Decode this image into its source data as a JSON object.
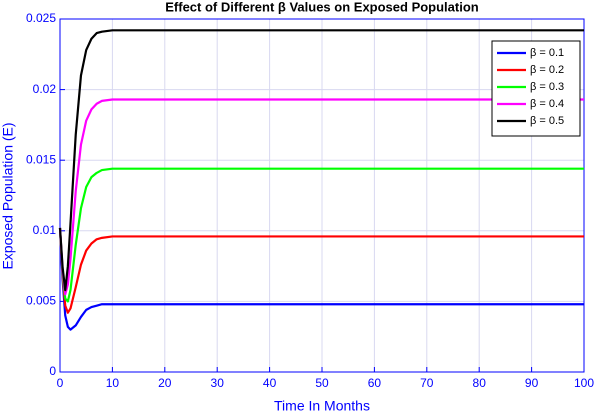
{
  "chart_data": {
    "type": "line",
    "title": "Effect of Different β Values on Exposed Population",
    "x_label": "Time In Months",
    "y_label": "Exposed Population (E)",
    "x": [
      0,
      0.5,
      1,
      1.5,
      2,
      3,
      4,
      5,
      6,
      7,
      8,
      10,
      12,
      15,
      20,
      30,
      40,
      50,
      60,
      70,
      80,
      90,
      100
    ],
    "series": [
      {
        "name": "β = 0.1",
        "color": "#0000ff",
        "values": [
          0.0102,
          0.0065,
          0.004,
          0.0032,
          0.003,
          0.0033,
          0.0039,
          0.0044,
          0.0046,
          0.0047,
          0.0048,
          0.0048,
          0.0048,
          0.0048,
          0.0048,
          0.0048,
          0.0048,
          0.0048,
          0.0048,
          0.0048,
          0.0048,
          0.0048,
          0.0048
        ]
      },
      {
        "name": "β = 0.2",
        "color": "#ff0000",
        "values": [
          0.0102,
          0.0068,
          0.0047,
          0.0042,
          0.0045,
          0.006,
          0.0076,
          0.0086,
          0.0091,
          0.0094,
          0.0095,
          0.0096,
          0.0096,
          0.0096,
          0.0096,
          0.0096,
          0.0096,
          0.0096,
          0.0096,
          0.0096,
          0.0096,
          0.0096,
          0.0096
        ]
      },
      {
        "name": "β = 0.3",
        "color": "#00ff00",
        "values": [
          0.0102,
          0.007,
          0.0052,
          0.005,
          0.0058,
          0.009,
          0.0116,
          0.0131,
          0.0138,
          0.0141,
          0.0143,
          0.0144,
          0.0144,
          0.0144,
          0.0144,
          0.0144,
          0.0144,
          0.0144,
          0.0144,
          0.0144,
          0.0144,
          0.0144,
          0.0144
        ]
      },
      {
        "name": "β = 0.4",
        "color": "#ff00ff",
        "values": [
          0.0102,
          0.0072,
          0.0055,
          0.0062,
          0.008,
          0.0128,
          0.0161,
          0.0178,
          0.0186,
          0.019,
          0.0192,
          0.0193,
          0.0193,
          0.0193,
          0.0193,
          0.0193,
          0.0193,
          0.0193,
          0.0193,
          0.0193,
          0.0193,
          0.0193,
          0.0193
        ]
      },
      {
        "name": "β = 0.5",
        "color": "#000000",
        "values": [
          0.0102,
          0.0074,
          0.0058,
          0.0075,
          0.0105,
          0.0168,
          0.021,
          0.0228,
          0.0236,
          0.024,
          0.0241,
          0.0242,
          0.0242,
          0.0242,
          0.0242,
          0.0242,
          0.0242,
          0.0242,
          0.0242,
          0.0242,
          0.0242,
          0.0242,
          0.0242
        ]
      }
    ],
    "xlim": [
      0,
      100
    ],
    "xticks": [
      0,
      10,
      20,
      30,
      40,
      50,
      60,
      70,
      80,
      90,
      100
    ],
    "ylim": [
      0,
      0.025
    ],
    "yticks": [
      0,
      0.005,
      0.01,
      0.015,
      0.02,
      0.025
    ],
    "grid": true,
    "legend_position": "upper-right"
  }
}
